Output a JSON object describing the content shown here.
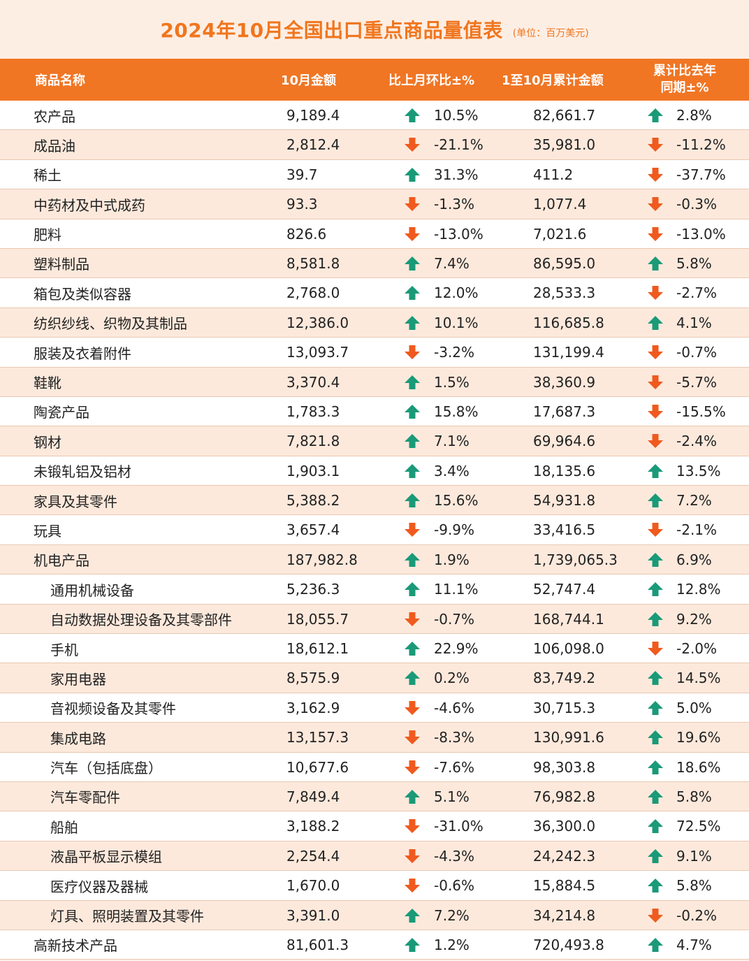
{
  "title": "2024年10月全国出口重点商品量值表",
  "unit": "(单位：百万美元)",
  "colors": {
    "accent": "#f07624",
    "up": "#1a9a78",
    "down": "#f05a1e"
  },
  "headers": {
    "name": "商品名称",
    "oct": "10月金额",
    "mom": "比上月环比±%",
    "cum": "1至10月累计金额",
    "yoy_line1": "累计比去年",
    "yoy_line2": "同期±%"
  },
  "rows": [
    {
      "name": "农产品",
      "oct": "9,189.4",
      "mom": "10.5%",
      "mom_dir": "up",
      "cum": "82,661.7",
      "yoy": "2.8%",
      "yoy_dir": "up",
      "sub": false
    },
    {
      "name": "成品油",
      "oct": "2,812.4",
      "mom": "-21.1%",
      "mom_dir": "down",
      "cum": "35,981.0",
      "yoy": "-11.2%",
      "yoy_dir": "down",
      "sub": false
    },
    {
      "name": "稀土",
      "oct": "39.7",
      "mom": "31.3%",
      "mom_dir": "up",
      "cum": "411.2",
      "yoy": "-37.7%",
      "yoy_dir": "down",
      "sub": false
    },
    {
      "name": "中药材及中式成药",
      "oct": "93.3",
      "mom": "-1.3%",
      "mom_dir": "down",
      "cum": "1,077.4",
      "yoy": "-0.3%",
      "yoy_dir": "down",
      "sub": false
    },
    {
      "name": "肥料",
      "oct": "826.6",
      "mom": "-13.0%",
      "mom_dir": "down",
      "cum": "7,021.6",
      "yoy": "-13.0%",
      "yoy_dir": "down",
      "sub": false
    },
    {
      "name": "塑料制品",
      "oct": "8,581.8",
      "mom": "7.4%",
      "mom_dir": "up",
      "cum": "86,595.0",
      "yoy": "5.8%",
      "yoy_dir": "up",
      "sub": false
    },
    {
      "name": "箱包及类似容器",
      "oct": "2,768.0",
      "mom": "12.0%",
      "mom_dir": "up",
      "cum": "28,533.3",
      "yoy": "-2.7%",
      "yoy_dir": "down",
      "sub": false
    },
    {
      "name": "纺织纱线、织物及其制品",
      "oct": "12,386.0",
      "mom": "10.1%",
      "mom_dir": "up",
      "cum": "116,685.8",
      "yoy": "4.1%",
      "yoy_dir": "up",
      "sub": false
    },
    {
      "name": "服装及衣着附件",
      "oct": "13,093.7",
      "mom": "-3.2%",
      "mom_dir": "down",
      "cum": "131,199.4",
      "yoy": "-0.7%",
      "yoy_dir": "down",
      "sub": false
    },
    {
      "name": "鞋靴",
      "oct": "3,370.4",
      "mom": "1.5%",
      "mom_dir": "up",
      "cum": "38,360.9",
      "yoy": "-5.7%",
      "yoy_dir": "down",
      "sub": false
    },
    {
      "name": "陶瓷产品",
      "oct": "1,783.3",
      "mom": "15.8%",
      "mom_dir": "up",
      "cum": "17,687.3",
      "yoy": "-15.5%",
      "yoy_dir": "down",
      "sub": false
    },
    {
      "name": "钢材",
      "oct": "7,821.8",
      "mom": "7.1%",
      "mom_dir": "up",
      "cum": "69,964.6",
      "yoy": "-2.4%",
      "yoy_dir": "down",
      "sub": false
    },
    {
      "name": "未锻轧铝及铝材",
      "oct": "1,903.1",
      "mom": "3.4%",
      "mom_dir": "up",
      "cum": "18,135.6",
      "yoy": "13.5%",
      "yoy_dir": "up",
      "sub": false
    },
    {
      "name": "家具及其零件",
      "oct": "5,388.2",
      "mom": "15.6%",
      "mom_dir": "up",
      "cum": "54,931.8",
      "yoy": "7.2%",
      "yoy_dir": "up",
      "sub": false
    },
    {
      "name": "玩具",
      "oct": "3,657.4",
      "mom": "-9.9%",
      "mom_dir": "down",
      "cum": "33,416.5",
      "yoy": "-2.1%",
      "yoy_dir": "down",
      "sub": false
    },
    {
      "name": "机电产品",
      "oct": "187,982.8",
      "mom": "1.9%",
      "mom_dir": "up",
      "cum": "1,739,065.3",
      "yoy": "6.9%",
      "yoy_dir": "up",
      "sub": false
    },
    {
      "name": "通用机械设备",
      "oct": "5,236.3",
      "mom": "11.1%",
      "mom_dir": "up",
      "cum": "52,747.4",
      "yoy": "12.8%",
      "yoy_dir": "up",
      "sub": true
    },
    {
      "name": "自动数据处理设备及其零部件",
      "oct": "18,055.7",
      "mom": "-0.7%",
      "mom_dir": "down",
      "cum": "168,744.1",
      "yoy": "9.2%",
      "yoy_dir": "up",
      "sub": true
    },
    {
      "name": "手机",
      "oct": "18,612.1",
      "mom": "22.9%",
      "mom_dir": "up",
      "cum": "106,098.0",
      "yoy": "-2.0%",
      "yoy_dir": "down",
      "sub": true
    },
    {
      "name": "家用电器",
      "oct": "8,575.9",
      "mom": "0.2%",
      "mom_dir": "up",
      "cum": "83,749.2",
      "yoy": "14.5%",
      "yoy_dir": "up",
      "sub": true
    },
    {
      "name": "音视频设备及其零件",
      "oct": "3,162.9",
      "mom": "-4.6%",
      "mom_dir": "down",
      "cum": "30,715.3",
      "yoy": "5.0%",
      "yoy_dir": "up",
      "sub": true
    },
    {
      "name": "集成电路",
      "oct": "13,157.3",
      "mom": "-8.3%",
      "mom_dir": "down",
      "cum": "130,991.6",
      "yoy": "19.6%",
      "yoy_dir": "up",
      "sub": true
    },
    {
      "name": "汽车（包括底盘）",
      "oct": "10,677.6",
      "mom": "-7.6%",
      "mom_dir": "down",
      "cum": "98,303.8",
      "yoy": "18.6%",
      "yoy_dir": "up",
      "sub": true
    },
    {
      "name": "汽车零配件",
      "oct": "7,849.4",
      "mom": "5.1%",
      "mom_dir": "up",
      "cum": "76,982.8",
      "yoy": "5.8%",
      "yoy_dir": "up",
      "sub": true
    },
    {
      "name": "船舶",
      "oct": "3,188.2",
      "mom": "-31.0%",
      "mom_dir": "down",
      "cum": "36,300.0",
      "yoy": "72.5%",
      "yoy_dir": "up",
      "sub": true
    },
    {
      "name": "液晶平板显示模组",
      "oct": "2,254.4",
      "mom": "-4.3%",
      "mom_dir": "down",
      "cum": "24,242.3",
      "yoy": "9.1%",
      "yoy_dir": "up",
      "sub": true
    },
    {
      "name": "医疗仪器及器械",
      "oct": "1,670.0",
      "mom": "-0.6%",
      "mom_dir": "down",
      "cum": "15,884.5",
      "yoy": "5.8%",
      "yoy_dir": "up",
      "sub": true
    },
    {
      "name": "灯具、照明装置及其零件",
      "oct": "3,391.0",
      "mom": "7.2%",
      "mom_dir": "up",
      "cum": "34,214.8",
      "yoy": "-0.2%",
      "yoy_dir": "down",
      "sub": true
    },
    {
      "name": "高新技术产品",
      "oct": "81,601.3",
      "mom": "1.2%",
      "mom_dir": "up",
      "cum": "720,493.8",
      "yoy": "4.7%",
      "yoy_dir": "up",
      "sub": false
    }
  ]
}
